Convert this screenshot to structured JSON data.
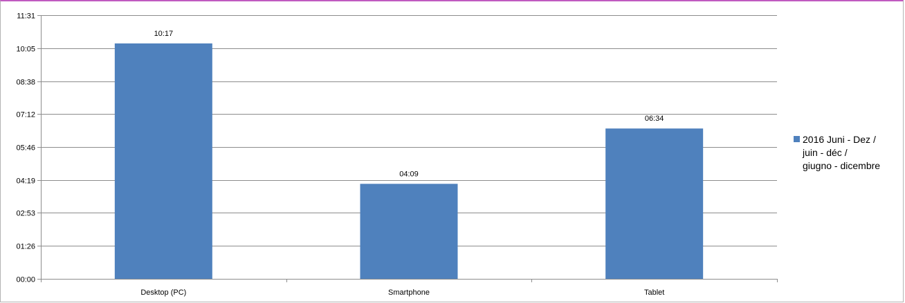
{
  "chart_data": {
    "type": "bar",
    "categories": [
      "Desktop (PC)",
      "Smartphone",
      "Tablet"
    ],
    "series": [
      {
        "name": "2016 Juni - Dez / juin - déc / giugno - dicembre",
        "values_seconds": [
          617,
          249,
          394
        ],
        "labels": [
          "10:17",
          "04:09",
          "06:34"
        ],
        "color": "#4f81bd"
      }
    ],
    "y_ticks_seconds": [
      0,
      86,
      173,
      259,
      346,
      432,
      518,
      605,
      691
    ],
    "y_tick_labels": [
      "00:00",
      "01:26",
      "02:53",
      "04:19",
      "05:46",
      "07:12",
      "08:38",
      "10:05",
      "11:31"
    ],
    "ylim_seconds": [
      0,
      691
    ],
    "grid": true,
    "legend_position": "right",
    "legend_lines": [
      "2016 Juni - Dez /",
      "juin - déc /",
      "giugno - dicembre"
    ]
  }
}
